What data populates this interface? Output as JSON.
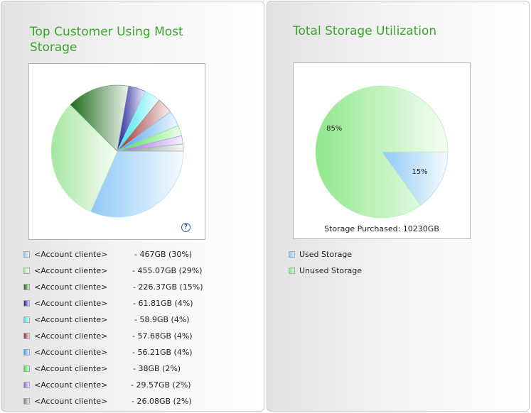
{
  "left_panel": {
    "title": "Top Customer Using Most Storage",
    "help_glyph": "?",
    "legend": [
      {
        "name": "<Account cliente>",
        "value": "- 467GB (30%)"
      },
      {
        "name": "<Account cliente>",
        "value": "- 455.07GB (29%)"
      },
      {
        "name": "<Account cliente>",
        "value": "- 226.37GB (15%)"
      },
      {
        "name": "<Account cliente>",
        "value": "- 61.81GB (4%)"
      },
      {
        "name": "<Account cliente>",
        "value": "- 58.9GB (4%)"
      },
      {
        "name": "<Account cliente>",
        "value": "- 57.68GB (4%)"
      },
      {
        "name": "<Account cliente>",
        "value": "- 56.21GB (4%)"
      },
      {
        "name": "<Account cliente>",
        "value": "- 38GB (2%)"
      },
      {
        "name": "<Account cliente>",
        "value": "- 29.57GB (2%)"
      },
      {
        "name": "<Account cliente>",
        "value": "- 26.08GB (2%)"
      }
    ]
  },
  "right_panel": {
    "title": "Total Storage Utilization",
    "purchased_label": "Storage Purchased: 10230GB",
    "legend": [
      {
        "name": "Used Storage"
      },
      {
        "name": "Unused Storage"
      }
    ]
  },
  "chart_data": [
    {
      "type": "pie",
      "title": "Top Customer Using Most Storage",
      "unit": "GB",
      "slices": [
        {
          "label": "<Account cliente>",
          "value": 467,
          "percent": 30,
          "color": "#8ec9f7"
        },
        {
          "label": "<Account cliente>",
          "value": 455.07,
          "percent": 29,
          "color": "#a4e6a0"
        },
        {
          "label": "<Account cliente>",
          "value": 226.37,
          "percent": 15,
          "color": "#1e6b1e"
        },
        {
          "label": "<Account cliente>",
          "value": 61.81,
          "percent": 4,
          "color": "#24249a"
        },
        {
          "label": "<Account cliente>",
          "value": 58.9,
          "percent": 4,
          "color": "#37e6ee"
        },
        {
          "label": "<Account cliente>",
          "value": 57.68,
          "percent": 4,
          "color": "#9a3232"
        },
        {
          "label": "<Account cliente>",
          "value": 56.21,
          "percent": 4,
          "color": "#4aa0ee"
        },
        {
          "label": "<Account cliente>",
          "value": 38,
          "percent": 2,
          "color": "#45e045"
        },
        {
          "label": "<Account cliente>",
          "value": 29.57,
          "percent": 2,
          "color": "#9a62e6"
        },
        {
          "label": "<Account cliente>",
          "value": 26.08,
          "percent": 2,
          "color": "#7a8a8a"
        }
      ]
    },
    {
      "type": "pie",
      "title": "Total Storage Utilization",
      "slices": [
        {
          "label": "Used Storage",
          "percent": 15,
          "color": "#8ec9f7"
        },
        {
          "label": "Unused Storage",
          "percent": 85,
          "color": "#8fe88a"
        }
      ]
    }
  ]
}
